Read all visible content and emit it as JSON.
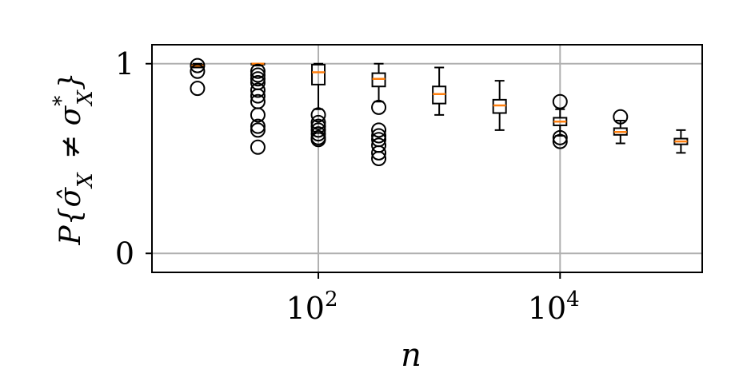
{
  "chart_data": {
    "type": "box",
    "xlabel": "n",
    "ylabel": "P{σ̂_X ≠ σ*_X}",
    "xscale": "log",
    "xlim": [
      4.2,
      150000
    ],
    "ylim": [
      -0.1,
      1.1
    ],
    "grid": true,
    "x_ticks": [
      {
        "value": 100,
        "base": "10",
        "exp": "2"
      },
      {
        "value": 10000,
        "base": "10",
        "exp": "4"
      }
    ],
    "y_ticks": [
      {
        "value": 0,
        "label": "0"
      },
      {
        "value": 1,
        "label": "1"
      }
    ],
    "colors": {
      "box": "#000000",
      "median": "#ff7f0e",
      "grid": "#b0b0b0"
    },
    "boxes": [
      {
        "x": 10,
        "q1": 0.985,
        "median": 0.99,
        "q3": 0.995,
        "whislo": 0.98,
        "whishi": 1.0,
        "fliers": [
          0.99,
          0.96,
          0.87
        ]
      },
      {
        "x": 31.6,
        "q1": 0.995,
        "median": 1.0,
        "q3": 1.0,
        "whislo": 0.99,
        "whishi": 1.0,
        "fliers": [
          0.96,
          0.94,
          0.92,
          0.9,
          0.86,
          0.83,
          0.8,
          0.73,
          0.67,
          0.65,
          0.56
        ]
      },
      {
        "x": 100,
        "q1": 0.89,
        "median": 0.955,
        "q3": 0.995,
        "whislo": 0.76,
        "whishi": 1.0,
        "fliers": [
          0.73,
          0.69,
          0.67,
          0.65,
          0.63,
          0.61,
          0.6
        ]
      },
      {
        "x": 316,
        "q1": 0.88,
        "median": 0.92,
        "q3": 0.95,
        "whislo": 0.8,
        "whishi": 1.0,
        "fliers": [
          0.77,
          0.65,
          0.62,
          0.6,
          0.57,
          0.53,
          0.5
        ]
      },
      {
        "x": 1000,
        "q1": 0.79,
        "median": 0.84,
        "q3": 0.88,
        "whislo": 0.73,
        "whishi": 0.98,
        "fliers": []
      },
      {
        "x": 3160,
        "q1": 0.74,
        "median": 0.78,
        "q3": 0.81,
        "whislo": 0.65,
        "whishi": 0.91,
        "fliers": []
      },
      {
        "x": 10000,
        "q1": 0.675,
        "median": 0.695,
        "q3": 0.715,
        "whislo": 0.62,
        "whishi": 0.76,
        "fliers": [
          0.8,
          0.61,
          0.59
        ]
      },
      {
        "x": 31600,
        "q1": 0.625,
        "median": 0.64,
        "q3": 0.66,
        "whislo": 0.58,
        "whishi": 0.7,
        "fliers": [
          0.72
        ]
      },
      {
        "x": 100000,
        "q1": 0.575,
        "median": 0.59,
        "q3": 0.605,
        "whislo": 0.53,
        "whishi": 0.65,
        "fliers": []
      }
    ]
  }
}
